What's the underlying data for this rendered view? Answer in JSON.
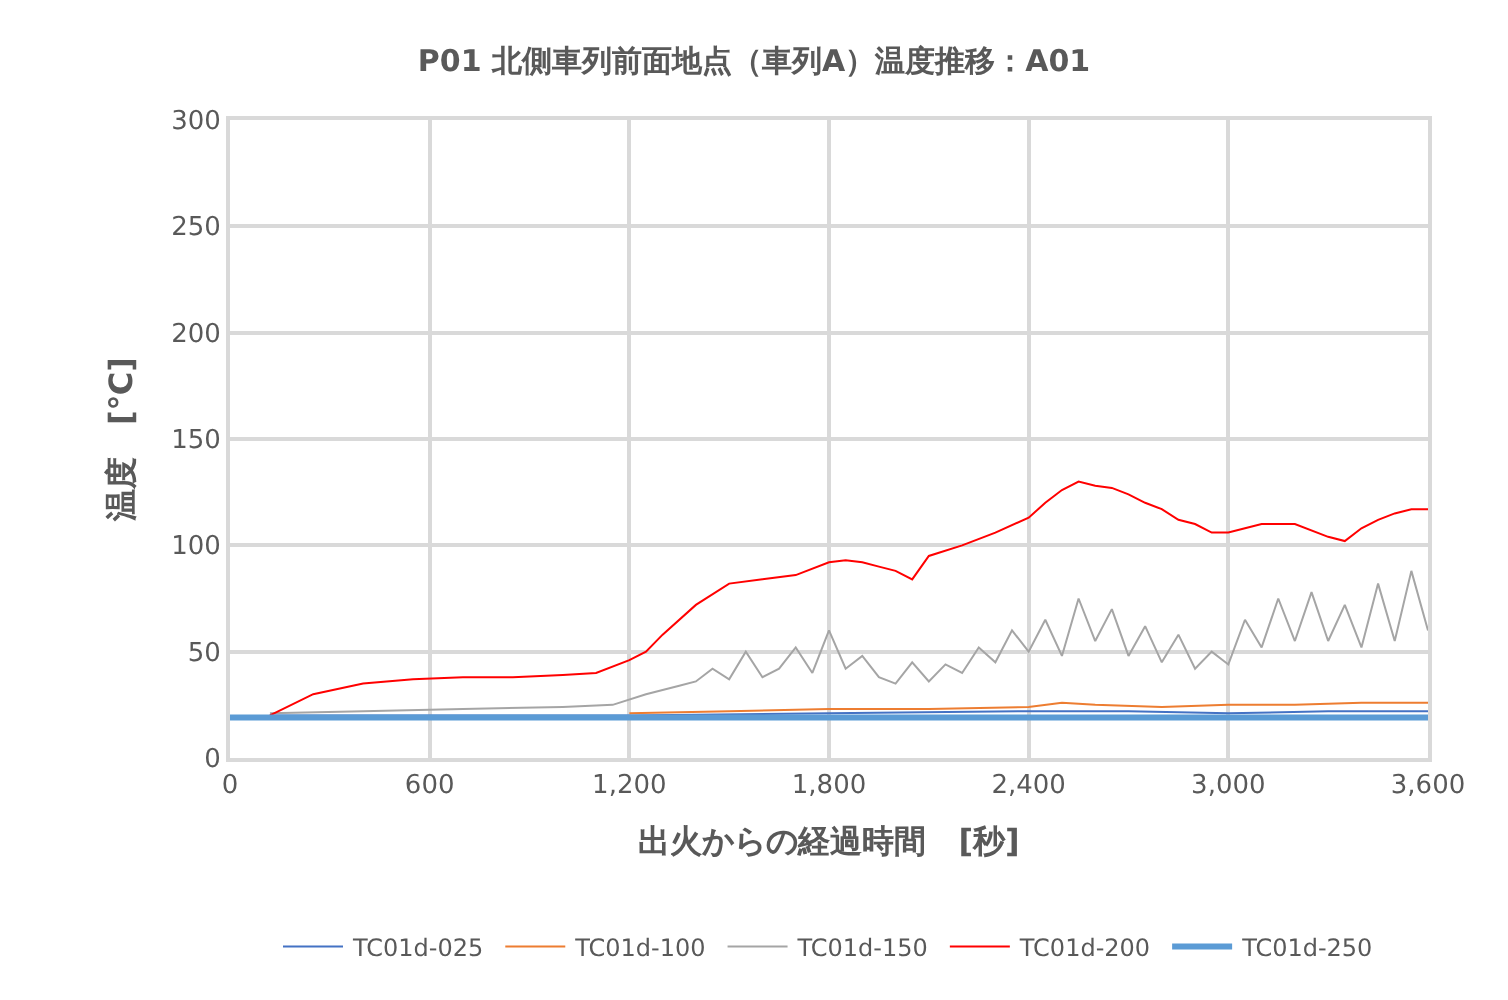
{
  "chart_data": {
    "type": "line",
    "title": "P01 北側車列前面地点（車列A）温度推移：A01",
    "xlabel": "出火からの経過時間　[秒]",
    "ylabel": "温度　[℃]",
    "xlim": [
      0,
      3600
    ],
    "xticks": [
      {
        "value": 0,
        "label": "0"
      },
      {
        "value": 600,
        "label": "600"
      },
      {
        "value": 1200,
        "label": "1,200"
      },
      {
        "value": 1800,
        "label": "1,800"
      },
      {
        "value": 2400,
        "label": "2,400"
      },
      {
        "value": 3000,
        "label": "3,000"
      },
      {
        "value": 3600,
        "label": "3,600"
      }
    ],
    "ylim": [
      0,
      300
    ],
    "yticks": [
      0,
      50,
      100,
      150,
      200,
      250,
      300
    ],
    "grid": true,
    "legend": "bottom",
    "marker": "none",
    "line_style": "solid",
    "series": [
      {
        "name": "TC01d-025",
        "color": "#4472c4",
        "x": [
          120,
          600,
          1200,
          1800,
          2400,
          2700,
          3000,
          3300,
          3600
        ],
        "values": [
          20,
          20,
          20,
          21,
          22,
          22,
          21,
          22,
          22
        ]
      },
      {
        "name": "TC01d-100",
        "color": "#ed7d31",
        "x": [
          1200,
          1500,
          1800,
          2100,
          2400,
          2500,
          2600,
          2800,
          3000,
          3200,
          3400,
          3600
        ],
        "values": [
          21,
          22,
          23,
          23,
          24,
          26,
          25,
          24,
          25,
          25,
          26,
          26
        ]
      },
      {
        "name": "TC01d-150",
        "color": "#a5a5a5",
        "x": [
          120,
          400,
          700,
          1000,
          1150,
          1250,
          1350,
          1400,
          1450,
          1500,
          1550,
          1600,
          1650,
          1700,
          1750,
          1800,
          1850,
          1900,
          1950,
          2000,
          2050,
          2100,
          2150,
          2200,
          2250,
          2300,
          2350,
          2400,
          2450,
          2500,
          2550,
          2600,
          2650,
          2700,
          2750,
          2800,
          2850,
          2900,
          2950,
          3000,
          3050,
          3100,
          3150,
          3200,
          3250,
          3300,
          3350,
          3400,
          3450,
          3500,
          3550,
          3600
        ],
        "values": [
          21,
          22,
          23,
          24,
          25,
          30,
          34,
          36,
          42,
          37,
          50,
          38,
          42,
          52,
          40,
          60,
          42,
          48,
          38,
          35,
          45,
          36,
          44,
          40,
          52,
          45,
          60,
          50,
          65,
          48,
          75,
          55,
          70,
          48,
          62,
          45,
          58,
          42,
          50,
          44,
          65,
          52,
          75,
          55,
          78,
          55,
          72,
          52,
          82,
          55,
          88,
          60
        ]
      },
      {
        "name": "TC01d-200",
        "color": "#ff0000",
        "x": [
          120,
          250,
          400,
          550,
          700,
          850,
          1000,
          1100,
          1200,
          1250,
          1300,
          1400,
          1500,
          1600,
          1700,
          1800,
          1850,
          1900,
          1950,
          2000,
          2050,
          2100,
          2200,
          2300,
          2400,
          2450,
          2500,
          2550,
          2600,
          2650,
          2700,
          2750,
          2800,
          2850,
          2900,
          2950,
          3000,
          3050,
          3100,
          3200,
          3300,
          3350,
          3400,
          3450,
          3500,
          3550,
          3600
        ],
        "values": [
          20,
          30,
          35,
          37,
          38,
          38,
          39,
          40,
          46,
          50,
          58,
          72,
          82,
          84,
          86,
          92,
          93,
          92,
          90,
          88,
          84,
          95,
          100,
          106,
          113,
          120,
          126,
          130,
          128,
          127,
          124,
          120,
          117,
          112,
          110,
          106,
          106,
          108,
          110,
          110,
          104,
          102,
          108,
          112,
          115,
          117,
          117
        ]
      },
      {
        "name": "TC01d-250",
        "color": "#5b9bd5",
        "x": [
          0,
          3600
        ],
        "values": [
          19,
          19
        ]
      }
    ]
  }
}
